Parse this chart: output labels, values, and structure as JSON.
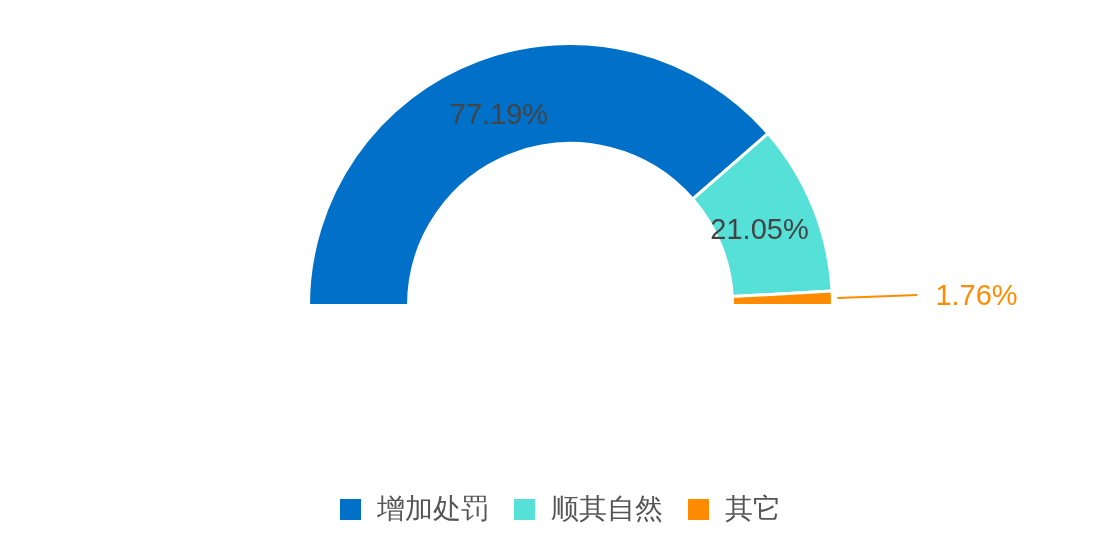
{
  "chart_data": {
    "type": "donut",
    "categories": [
      "增加处罚",
      "顺其自然",
      "其它"
    ],
    "values": [
      77.19,
      21.05,
      1.76
    ],
    "colors": [
      "#0070c8",
      "#55e0d8",
      "#ff8c00"
    ],
    "value_labels": [
      "77.19%",
      "21.05%",
      "1.76%"
    ],
    "legend": "bottom"
  }
}
